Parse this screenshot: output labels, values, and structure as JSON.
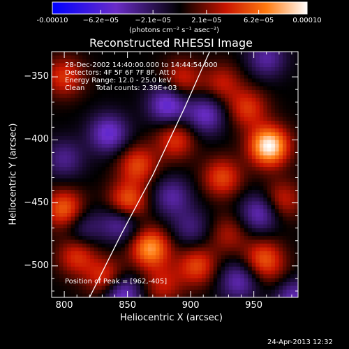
{
  "colorbar": {
    "ticks": [
      "-0.00010",
      "−6.2e−05",
      "−2.1e−05",
      "2.1e−05",
      "6.2e−05",
      "0.00010"
    ],
    "values": [
      -0.0001,
      -6.2e-05,
      -2.1e-05,
      2.1e-05,
      6.2e-05,
      0.0001
    ],
    "units": "(photons cm⁻² s⁻¹ asec⁻²)"
  },
  "info": {
    "line1": "28-Dec-2002 14:40:00.000 to 14:44:54.000",
    "line2": "Detectors: 4F 5F 6F 7F 8F, Att 0",
    "line3": "Energy Range: 12.0 - 25.0 keV",
    "line4": "Clean     Total counts: 2.39E+03"
  },
  "peak_label": "Position of Peak = [962,-405]",
  "date_stamp": "24-Apr-2013 12:32",
  "chart_data": {
    "type": "heatmap",
    "title": "Reconstructed RHESSI Image",
    "xlabel": "Heliocentric X (arcsec)",
    "ylabel": "Heliocentric Y (arcsec)",
    "xlim": [
      790,
      985
    ],
    "ylim": [
      -525,
      -330
    ],
    "x_ticks": [
      800,
      850,
      900,
      950
    ],
    "y_ticks": [
      -350,
      -400,
      -450,
      -500
    ],
    "x_tick_labels": [
      "800",
      "850",
      "900",
      "950"
    ],
    "y_tick_labels": [
      "−350",
      "−400",
      "−450",
      "−500"
    ],
    "color_range": [
      -0.0001,
      0.0001
    ],
    "colormap": [
      "#0000ff",
      "#6a2cc8",
      "#000000",
      "#c81400",
      "#ff7a10",
      "#ffffff"
    ],
    "peak": {
      "x": 962,
      "y": -405
    },
    "limb_curve": {
      "x": [
        820,
        845,
        870,
        895,
        915
      ],
      "y": [
        -525,
        -475,
        -428,
        -375,
        -330
      ]
    },
    "sources": [
      {
        "x": 962,
        "y": -405,
        "value": 0.0001
      },
      {
        "x": 972,
        "y": -448,
        "value": 4e-05
      },
      {
        "x": 945,
        "y": -375,
        "value": 4.5e-05
      },
      {
        "x": 925,
        "y": -430,
        "value": 5e-05
      },
      {
        "x": 958,
        "y": -495,
        "value": 5.5e-05
      },
      {
        "x": 975,
        "y": -515,
        "value": 2.5e-05
      },
      {
        "x": 868,
        "y": -486,
        "value": 7.5e-05
      },
      {
        "x": 810,
        "y": -492,
        "value": 4.5e-05
      },
      {
        "x": 833,
        "y": -510,
        "value": 5e-05
      },
      {
        "x": 800,
        "y": -455,
        "value": 6e-05
      },
      {
        "x": 850,
        "y": -450,
        "value": 6.5e-05
      },
      {
        "x": 858,
        "y": -420,
        "value": 5e-05
      },
      {
        "x": 888,
        "y": -400,
        "value": 4.5e-05
      },
      {
        "x": 800,
        "y": -350,
        "value": 4.5e-05
      },
      {
        "x": 893,
        "y": -352,
        "value": 4e-05
      },
      {
        "x": 905,
        "y": -500,
        "value": 5e-05
      },
      {
        "x": 925,
        "y": -355,
        "value": 3.5e-05
      },
      {
        "x": 878,
        "y": -515,
        "value": 3.5e-05
      },
      {
        "x": 930,
        "y": -475,
        "value": 3e-05
      },
      {
        "x": 835,
        "y": -395,
        "value": -5.5e-05
      },
      {
        "x": 882,
        "y": -372,
        "value": -6e-05
      },
      {
        "x": 912,
        "y": -380,
        "value": -5e-05
      },
      {
        "x": 845,
        "y": -465,
        "value": -5e-05
      },
      {
        "x": 955,
        "y": -458,
        "value": -5e-05
      },
      {
        "x": 885,
        "y": -445,
        "value": -4e-05
      },
      {
        "x": 845,
        "y": -522,
        "value": -6e-05
      },
      {
        "x": 960,
        "y": -335,
        "value": -4e-05
      },
      {
        "x": 800,
        "y": -415,
        "value": -3.5e-05
      },
      {
        "x": 938,
        "y": -512,
        "value": -4.5e-05
      },
      {
        "x": 980,
        "y": -522,
        "value": -6e-05
      },
      {
        "x": 815,
        "y": -470,
        "value": -3e-05
      },
      {
        "x": 900,
        "y": -470,
        "value": -3e-05
      }
    ]
  }
}
